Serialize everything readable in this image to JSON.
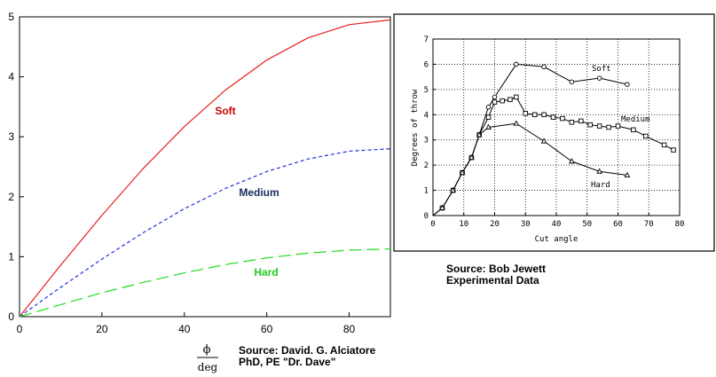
{
  "chart_data": [
    {
      "type": "line",
      "title": "",
      "xlabel_num": "ϕ",
      "xlabel_den": "deg",
      "ylabel": "",
      "xlim": [
        0,
        90
      ],
      "ylim": [
        0,
        5
      ],
      "xticks": [
        "0",
        "20",
        "40",
        "60",
        "80"
      ],
      "yticks": [
        "0",
        "1",
        "2",
        "3",
        "4",
        "5"
      ],
      "grid": false,
      "series": [
        {
          "name": "Soft",
          "color": "#e82020",
          "dash": "",
          "label_color": "#cc0000",
          "x": [
            0,
            10,
            20,
            30,
            40,
            50,
            60,
            70,
            80,
            90
          ],
          "y": [
            0,
            0.86,
            1.69,
            2.47,
            3.17,
            3.78,
            4.28,
            4.65,
            4.87,
            4.95
          ]
        },
        {
          "name": "Medium",
          "color": "#2030e0",
          "dash": "4,3",
          "label_color": "#1a3060",
          "x": [
            0,
            10,
            20,
            30,
            40,
            50,
            60,
            70,
            80,
            90
          ],
          "y": [
            0,
            0.49,
            0.96,
            1.4,
            1.8,
            2.14,
            2.42,
            2.63,
            2.76,
            2.8
          ]
        },
        {
          "name": "Hard",
          "color": "#20dd20",
          "dash": "14,6",
          "label_color": "#22cc22",
          "x": [
            0,
            10,
            20,
            30,
            40,
            50,
            60,
            70,
            80,
            90
          ],
          "y": [
            0,
            0.2,
            0.4,
            0.57,
            0.73,
            0.87,
            0.98,
            1.06,
            1.11,
            1.13
          ]
        }
      ]
    },
    {
      "type": "line",
      "title": "",
      "xlabel": "Cut angle",
      "ylabel": "Degrees of throw",
      "xlim": [
        0,
        80
      ],
      "ylim": [
        0,
        7
      ],
      "xticks": [
        "0",
        "10",
        "20",
        "30",
        "40",
        "50",
        "60",
        "70",
        "80"
      ],
      "yticks": [
        "0",
        "1",
        "2",
        "3",
        "4",
        "5",
        "6",
        "7"
      ],
      "grid": true,
      "series": [
        {
          "name": "Soft",
          "marker": "circle",
          "x": [
            0,
            3,
            6.5,
            9.5,
            12.5,
            15,
            18,
            20,
            27,
            36,
            45,
            54,
            63
          ],
          "y": [
            0,
            0.3,
            1.0,
            1.7,
            2.3,
            3.2,
            4.3,
            4.7,
            6.0,
            5.9,
            5.3,
            5.45,
            5.2
          ]
        },
        {
          "name": "Medium",
          "marker": "square",
          "x": [
            0,
            3,
            6.5,
            9.5,
            12.5,
            15,
            18,
            20,
            22.5,
            25,
            27,
            30,
            33,
            36,
            39,
            42,
            45,
            48,
            51,
            54,
            57,
            60,
            65,
            69,
            75,
            78
          ],
          "y": [
            0,
            0.3,
            1.0,
            1.7,
            2.3,
            3.2,
            3.9,
            4.5,
            4.55,
            4.6,
            4.7,
            4.05,
            4.0,
            4.0,
            3.9,
            3.85,
            3.7,
            3.75,
            3.6,
            3.55,
            3.5,
            3.55,
            3.4,
            3.15,
            2.8,
            2.6
          ]
        },
        {
          "name": "Hard",
          "marker": "triangle",
          "x": [
            0,
            3,
            6.5,
            9.5,
            12.5,
            15,
            18,
            27,
            36,
            45,
            54,
            63
          ],
          "y": [
            0,
            0.3,
            1.0,
            1.7,
            2.3,
            3.2,
            3.5,
            3.65,
            2.95,
            2.15,
            1.75,
            1.6
          ]
        }
      ]
    }
  ],
  "notes": {
    "left_source": "Source: David. G. Alciatore\nPhD, PE \"Dr. Dave\"",
    "right_source": "Source: Bob Jewett\nExperimental Data"
  }
}
